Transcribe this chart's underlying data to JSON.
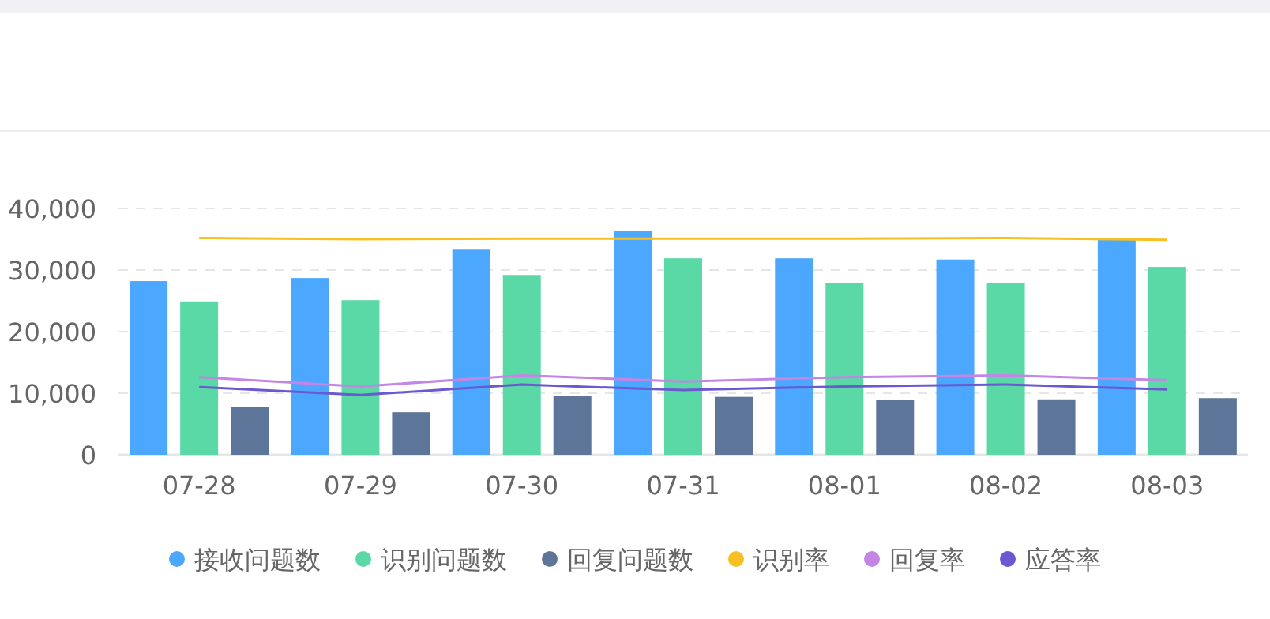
{
  "chart_data": {
    "type": "bar",
    "categories": [
      "07-28",
      "07-29",
      "07-30",
      "07-31",
      "08-01",
      "08-02",
      "08-03"
    ],
    "series": [
      {
        "name": "接收问题数",
        "color": "#4ba8fe",
        "values": [
          28200,
          28700,
          33300,
          36300,
          31900,
          31700,
          35000
        ]
      },
      {
        "name": "识别问题数",
        "color": "#5ad8a6",
        "values": [
          24900,
          25100,
          29200,
          31900,
          27900,
          27900,
          30500
        ]
      },
      {
        "name": "回复问题数",
        "color": "#5d7599",
        "values": [
          7700,
          6900,
          9500,
          9400,
          8900,
          9000,
          9200
        ]
      },
      {
        "name": "识别率",
        "type": "line",
        "color": "#f6c022",
        "values": [
          35200,
          35000,
          35100,
          35100,
          35100,
          35200,
          34900
        ]
      },
      {
        "name": "回复率",
        "type": "line",
        "color": "#c385e6",
        "values": [
          12600,
          11100,
          12900,
          11900,
          12600,
          12900,
          12100
        ]
      },
      {
        "name": "应答率",
        "type": "line",
        "color": "#6b59d1",
        "values": [
          11000,
          9700,
          11400,
          10500,
          11100,
          11400,
          10600
        ]
      }
    ],
    "ylim": [
      0,
      40000
    ],
    "yticks": [
      {
        "value": 0,
        "label": "0"
      },
      {
        "value": 10000,
        "label": "10,000"
      },
      {
        "value": 20000,
        "label": "20,000"
      },
      {
        "value": 30000,
        "label": "30,000"
      },
      {
        "value": 40000,
        "label": "40,000"
      }
    ],
    "grid": "y",
    "legend": "bottom"
  }
}
